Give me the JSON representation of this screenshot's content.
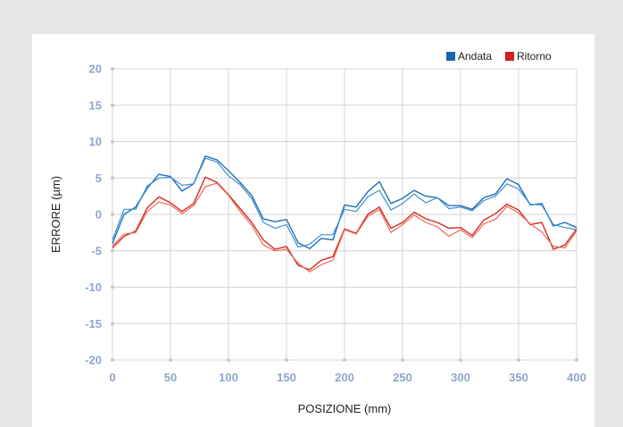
{
  "chart_data": {
    "type": "line",
    "xlabel": "POSIZIONE (mm)",
    "ylabel": "ERRORE (µm)",
    "xlim": [
      0,
      400
    ],
    "ylim": [
      -20,
      20
    ],
    "xticks": [
      0,
      50,
      100,
      150,
      200,
      250,
      300,
      350,
      400
    ],
    "yticks": [
      20,
      15,
      10,
      5,
      0,
      -5,
      -10,
      -15,
      -20
    ],
    "tick_label_color": "#8ea6cc",
    "grid": true,
    "legend_position": "top-right",
    "legend": [
      {
        "label": "Andata",
        "color": "#1565b3"
      },
      {
        "label": "Ritorno",
        "color": "#d0201f"
      }
    ],
    "x": [
      0,
      10,
      20,
      30,
      40,
      50,
      60,
      70,
      80,
      90,
      100,
      110,
      120,
      130,
      140,
      150,
      160,
      170,
      180,
      190,
      200,
      210,
      220,
      230,
      240,
      250,
      260,
      270,
      280,
      290,
      300,
      310,
      320,
      330,
      340,
      350,
      360,
      370,
      380,
      390,
      400
    ],
    "series": [
      {
        "group": "Andata",
        "color": "#1f70b8",
        "width": 1.4,
        "values": [
          -4,
          0,
          1,
          3.6,
          5.5,
          5.2,
          3.2,
          4.2,
          8,
          7.5,
          6,
          4.4,
          2.6,
          -0.6,
          -1,
          -0.7,
          -3.9,
          -4.7,
          -3.3,
          -3.5,
          1.3,
          1,
          3.1,
          4.5,
          1.5,
          2.2,
          3.3,
          2.5,
          2.3,
          1.2,
          1.2,
          0.7,
          2.3,
          2.8,
          4.9,
          4.1,
          1.3,
          1.5,
          -1.6,
          -1.1,
          -1.8
        ]
      },
      {
        "group": "Andata",
        "color": "#3d8fd0",
        "width": 1.2,
        "values": [
          -3.5,
          0.7,
          0.7,
          3.9,
          5,
          5.1,
          4,
          4.2,
          7.7,
          7.2,
          5.3,
          4.1,
          2.2,
          -1.1,
          -1.9,
          -1.4,
          -4.5,
          -4.1,
          -2.8,
          -2.8,
          0.7,
          0.4,
          2.4,
          3.3,
          0.6,
          1.5,
          2.8,
          1.6,
          2.3,
          0.8,
          1,
          0.5,
          1.9,
          2.5,
          4.2,
          3.5,
          1.4,
          1.3,
          -1.4,
          -1.8,
          -2.1
        ]
      },
      {
        "group": "Ritorno",
        "color": "#d42a26",
        "width": 1.4,
        "values": [
          -4.6,
          -3,
          -2.3,
          0.9,
          2.4,
          1.6,
          0.4,
          1.5,
          5.1,
          4.4,
          2.7,
          0.8,
          -1.1,
          -3.5,
          -4.8,
          -4.4,
          -7,
          -7.6,
          -6.3,
          -5.8,
          -2,
          -2.6,
          0,
          1,
          -1.9,
          -1.1,
          0.3,
          -0.6,
          -1.1,
          -1.9,
          -1.8,
          -2.9,
          -0.8,
          0.1,
          1.4,
          0.6,
          -1.4,
          -1.1,
          -4.8,
          -4.2,
          -2
        ]
      },
      {
        "group": "Ritorno",
        "color": "#ee6b55",
        "width": 1.2,
        "values": [
          -4.3,
          -2.7,
          -2.5,
          0.4,
          1.7,
          1.3,
          0.1,
          1.2,
          3.8,
          4.3,
          2.6,
          0.4,
          -1.5,
          -4.2,
          -5,
          -4.8,
          -6.7,
          -7.9,
          -6.9,
          -6.3,
          -2.1,
          -2.7,
          -0.3,
          0.7,
          -2.5,
          -1.4,
          -0.1,
          -1.1,
          -1.7,
          -3,
          -2.1,
          -3.2,
          -1.3,
          -0.7,
          1.1,
          0.2,
          -1.3,
          -2.4,
          -4.4,
          -4.6,
          -2.3
        ]
      }
    ]
  }
}
